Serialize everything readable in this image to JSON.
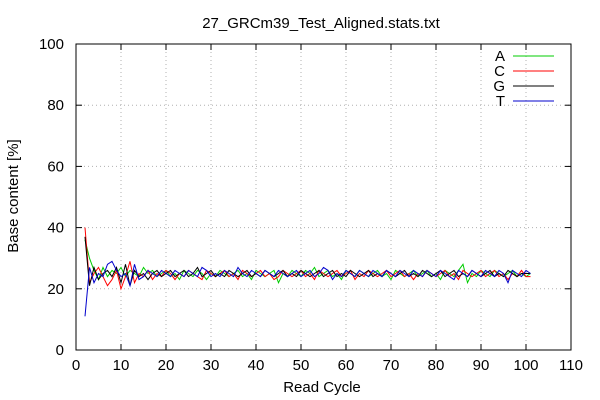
{
  "chart_data": {
    "type": "line",
    "title": "27_GRCm39_Test_Aligned.stats.txt",
    "xlabel": "Read Cycle",
    "ylabel": "Base content [%]",
    "xlim": [
      0,
      110
    ],
    "ylim": [
      0,
      100
    ],
    "xticks": [
      "0",
      "10",
      "20",
      "30",
      "40",
      "50",
      "60",
      "70",
      "80",
      "90",
      "100",
      "110"
    ],
    "yticks": [
      "0",
      "20",
      "40",
      "60",
      "80",
      "100"
    ],
    "grid": true,
    "legend_position": "top-right",
    "x": [
      2,
      3,
      4,
      5,
      6,
      7,
      8,
      9,
      10,
      11,
      12,
      13,
      14,
      15,
      16,
      17,
      18,
      19,
      20,
      21,
      22,
      23,
      24,
      25,
      26,
      27,
      28,
      29,
      30,
      31,
      32,
      33,
      34,
      35,
      36,
      37,
      38,
      39,
      40,
      41,
      42,
      43,
      44,
      45,
      46,
      47,
      48,
      49,
      50,
      51,
      52,
      53,
      54,
      55,
      56,
      57,
      58,
      59,
      60,
      61,
      62,
      63,
      64,
      65,
      66,
      67,
      68,
      69,
      70,
      71,
      72,
      73,
      74,
      75,
      76,
      77,
      78,
      79,
      80,
      81,
      82,
      83,
      84,
      85,
      86,
      87,
      88,
      89,
      90,
      91,
      92,
      93,
      94,
      95,
      96,
      97,
      98,
      99,
      100,
      101
    ],
    "series": [
      {
        "name": "A",
        "color": "#00cc00",
        "values": [
          36,
          30,
          26,
          23,
          27,
          24,
          26,
          25,
          27,
          24,
          26,
          25,
          24,
          27,
          25,
          26,
          24,
          25,
          26,
          24,
          25,
          23,
          26,
          25,
          24,
          26,
          25,
          23,
          25,
          24,
          26,
          25,
          24,
          25,
          26,
          24,
          25,
          23,
          26,
          25,
          24,
          25,
          26,
          22,
          25,
          24,
          26,
          25,
          24,
          26,
          25,
          27,
          24,
          25,
          26,
          24,
          25,
          23,
          26,
          25,
          24,
          26,
          25,
          24,
          25,
          26,
          24,
          25,
          23,
          26,
          25,
          24,
          25,
          26,
          24,
          25,
          26,
          24,
          25,
          23,
          26,
          25,
          24,
          26,
          28,
          22,
          25,
          24,
          26,
          25,
          24,
          26,
          25,
          24,
          25,
          26,
          24,
          25,
          24,
          25
        ]
      },
      {
        "name": "C",
        "color": "#ff0000",
        "values": [
          40,
          22,
          25,
          27,
          24,
          21,
          23,
          26,
          20,
          24,
          29,
          22,
          25,
          24,
          26,
          23,
          25,
          24,
          26,
          25,
          23,
          25,
          24,
          26,
          25,
          24,
          23,
          26,
          25,
          24,
          25,
          26,
          24,
          25,
          23,
          26,
          25,
          24,
          25,
          26,
          24,
          25,
          23,
          24,
          26,
          25,
          24,
          25,
          26,
          24,
          25,
          23,
          26,
          25,
          24,
          25,
          26,
          24,
          25,
          26,
          23,
          25,
          24,
          26,
          25,
          24,
          25,
          26,
          24,
          25,
          26,
          24,
          25,
          23,
          25,
          24,
          26,
          25,
          24,
          25,
          26,
          24,
          25,
          23,
          26,
          25,
          24,
          25,
          26,
          24,
          25,
          26,
          24,
          25,
          23,
          25,
          24,
          26,
          24,
          24
        ]
      },
      {
        "name": "G",
        "color": "#000000",
        "values": [
          37,
          21,
          27,
          23,
          25,
          26,
          24,
          27,
          22,
          28,
          21,
          26,
          24,
          25,
          23,
          25,
          26,
          24,
          25,
          26,
          24,
          25,
          26,
          24,
          25,
          27,
          24,
          25,
          26,
          24,
          25,
          24,
          26,
          25,
          24,
          25,
          26,
          24,
          25,
          24,
          26,
          25,
          24,
          25,
          26,
          24,
          25,
          24,
          26,
          25,
          24,
          25,
          26,
          24,
          25,
          26,
          24,
          25,
          24,
          26,
          25,
          24,
          25,
          26,
          24,
          25,
          24,
          26,
          25,
          24,
          25,
          26,
          24,
          25,
          24,
          26,
          25,
          24,
          25,
          26,
          24,
          25,
          26,
          24,
          25,
          24,
          26,
          25,
          24,
          25,
          26,
          24,
          25,
          24,
          26,
          25,
          24,
          25,
          25,
          25
        ]
      },
      {
        "name": "T",
        "color": "#0000cc",
        "values": [
          11,
          27,
          22,
          25,
          24,
          28,
          29,
          26,
          24,
          25,
          21,
          28,
          23,
          24,
          26,
          25,
          24,
          26,
          25,
          24,
          26,
          25,
          24,
          26,
          25,
          24,
          27,
          26,
          24,
          25,
          24,
          26,
          25,
          24,
          27,
          25,
          24,
          26,
          25,
          24,
          26,
          25,
          24,
          26,
          25,
          24,
          25,
          26,
          24,
          25,
          26,
          24,
          25,
          27,
          26,
          23,
          25,
          24,
          26,
          25,
          24,
          26,
          25,
          24,
          26,
          25,
          24,
          26,
          25,
          24,
          26,
          25,
          24,
          26,
          25,
          24,
          26,
          25,
          24,
          26,
          25,
          24,
          23,
          26,
          25,
          24,
          26,
          25,
          24,
          26,
          25,
          24,
          26,
          25,
          22,
          26,
          25,
          24,
          26,
          25
        ]
      }
    ]
  }
}
